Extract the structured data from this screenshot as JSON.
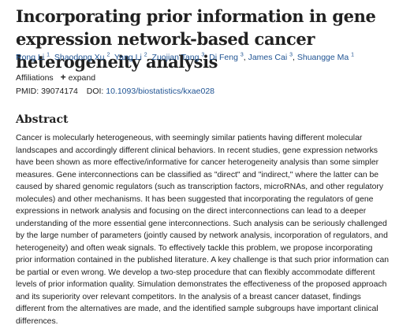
{
  "article": {
    "title": "Incorporating prior information in gene expression network-based cancer heterogeneity analysis",
    "authors": [
      {
        "name": "Rong Li",
        "aff": "1"
      },
      {
        "name": "Shaodong Xu",
        "aff": "2"
      },
      {
        "name": "Yang Li",
        "aff": "2"
      },
      {
        "name": "Zuojian Tang",
        "aff": "3"
      },
      {
        "name": "Di Feng",
        "aff": "3"
      },
      {
        "name": "James Cai",
        "aff": "3"
      },
      {
        "name": "Shuangge Ma",
        "aff": "1"
      }
    ],
    "affiliations_label": "Affiliations",
    "expand_label": "expand",
    "pmid_text": "PMID: 39074174",
    "doi_label": "DOI:",
    "doi_value": "10.1093/biostatistics/kxae028"
  },
  "abstract": {
    "heading": "Abstract",
    "text": "Cancer is molecularly heterogeneous, with seemingly similar patients having different molecular landscapes and accordingly different clinical behaviors. In recent studies, gene expression networks have been shown as more effective/informative for cancer heterogeneity analysis than some simpler measures. Gene interconnections can be classified as \"direct\" and \"indirect,\" where the latter can be caused by shared genomic regulators (such as transcription factors, microRNAs, and other regulatory molecules) and other mechanisms. It has been suggested that incorporating the regulators of gene expressions in network analysis and focusing on the direct interconnections can lead to a deeper understanding of the more essential gene interconnections. Such analysis can be seriously challenged by the large number of parameters (jointly caused by network analysis, incorporation of regulators, and heterogeneity) and often weak signals. To effectively tackle this problem, we propose incorporating prior information contained in the published literature. A key challenge is that such prior information can be partial or even wrong. We develop a two-step procedure that can flexibly accommodate different levels of prior information quality. Simulation demonstrates the effectiveness of the proposed approach and its superiority over relevant competitors. In the analysis of a breast cancer dataset, findings different from the alternatives are made, and the identified sample subgroups have important clinical differences."
  },
  "colors": {
    "link": "#205493",
    "text": "#212121"
  }
}
